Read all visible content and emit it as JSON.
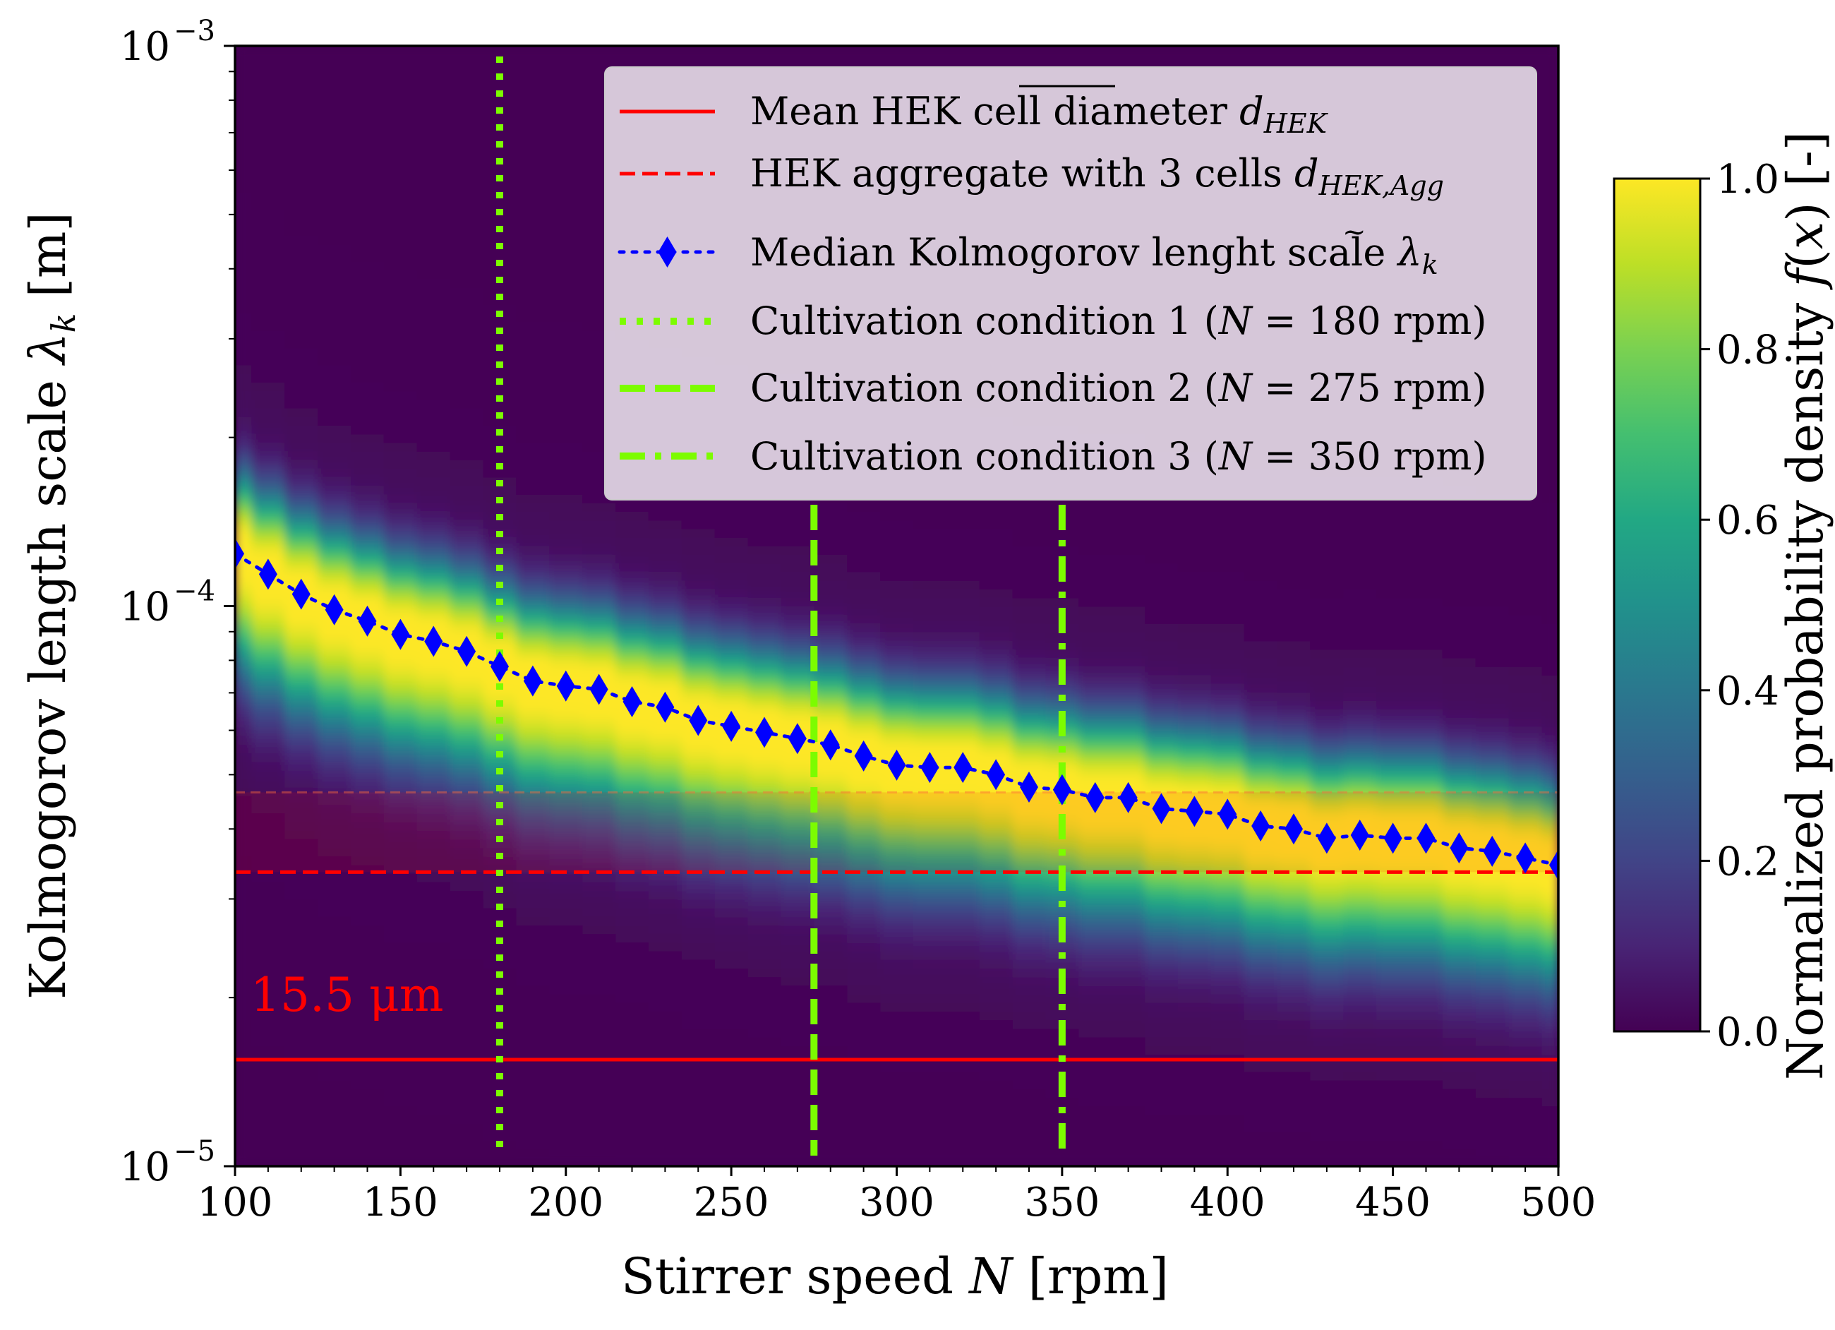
{
  "chart_data": {
    "type": "heatmap",
    "title": "",
    "xlabel": "Stirrer speed N [rpm]",
    "ylabel": "Kolmogorov length scale λk [m]",
    "colorbar_label": "Normalized probability density f(x) [-]",
    "x_range": [
      100,
      500
    ],
    "y_range": [
      1e-05,
      0.001
    ],
    "y_scale": "log",
    "colorbar_range": [
      0.0,
      1.0
    ],
    "colormap": "viridis",
    "x_ticks": [
      "100",
      "150",
      "200",
      "250",
      "300",
      "350",
      "400",
      "450",
      "500"
    ],
    "y_ticks": [
      {
        "base": "10",
        "exp": "−3"
      },
      {
        "base": "10",
        "exp": "−4"
      },
      {
        "base": "10",
        "exp": "−5"
      }
    ],
    "colorbar_ticks": [
      "0.0",
      "0.2",
      "0.4",
      "0.6",
      "0.8",
      "1.0"
    ],
    "median_series": {
      "name": "Median Kolmogorov lenght scale",
      "color": "#0000ff",
      "x": [
        100,
        110,
        120,
        130,
        140,
        150,
        160,
        170,
        180,
        190,
        200,
        210,
        220,
        230,
        240,
        250,
        260,
        270,
        280,
        290,
        300,
        310,
        320,
        330,
        340,
        350,
        360,
        370,
        380,
        390,
        400,
        410,
        420,
        430,
        440,
        450,
        460,
        470,
        480,
        490,
        500
      ],
      "y": [
        0.000124,
        0.000114,
        0.000105,
        9.85e-05,
        9.4e-05,
        8.9e-05,
        8.65e-05,
        8.3e-05,
        7.8e-05,
        7.35e-05,
        7.2e-05,
        7.1e-05,
        6.75e-05,
        6.6e-05,
        6.25e-05,
        6.1e-05,
        5.95e-05,
        5.8e-05,
        5.65e-05,
        5.4e-05,
        5.2e-05,
        5.15e-05,
        5.15e-05,
        5e-05,
        4.75e-05,
        4.7e-05,
        4.55e-05,
        4.55e-05,
        4.35e-05,
        4.3e-05,
        4.25e-05,
        4.05e-05,
        4e-05,
        3.85e-05,
        3.9e-05,
        3.85e-05,
        3.85e-05,
        3.7e-05,
        3.65e-05,
        3.55e-05,
        3.45e-05
      ]
    },
    "horizontal_lines": [
      {
        "name": "Mean HEK cell diameter",
        "y": 1.55e-05,
        "color": "#ff0000",
        "style": "solid"
      },
      {
        "name": "HEK aggregate with 3 cells",
        "y": 3.35e-05,
        "color": "#ff0000",
        "style": "dashed"
      }
    ],
    "vertical_lines": [
      {
        "name": "Cultivation condition 1",
        "x": 180,
        "color": "#7cfc00",
        "style": "dotted"
      },
      {
        "name": "Cultivation condition 2",
        "x": 275,
        "color": "#7cfc00",
        "style": "dashed"
      },
      {
        "name": "Cultivation condition 3",
        "x": 350,
        "color": "#7cfc00",
        "style": "dashdot"
      }
    ],
    "band_shading": {
      "y_low": 3.35e-05,
      "y_high": 4.65e-05
    },
    "annotation": "15.5 μm",
    "legend": {
      "position": "top-right",
      "entries": [
        {
          "text": "Mean HEK cell diameter ",
          "math": "d_HEK (overline)"
        },
        {
          "text": "HEK aggregate with 3 cells ",
          "math": "d_HEK,Agg"
        },
        {
          "text": "Median Kolmogorov lenght scale ",
          "math": "λk (tilde)"
        },
        {
          "text": "Cultivation condition 1 (N = 180 rpm)"
        },
        {
          "text": "Cultivation condition 2 (N = 275 rpm)"
        },
        {
          "text": "Cultivation condition 3 (N = 350 rpm)"
        }
      ]
    }
  }
}
